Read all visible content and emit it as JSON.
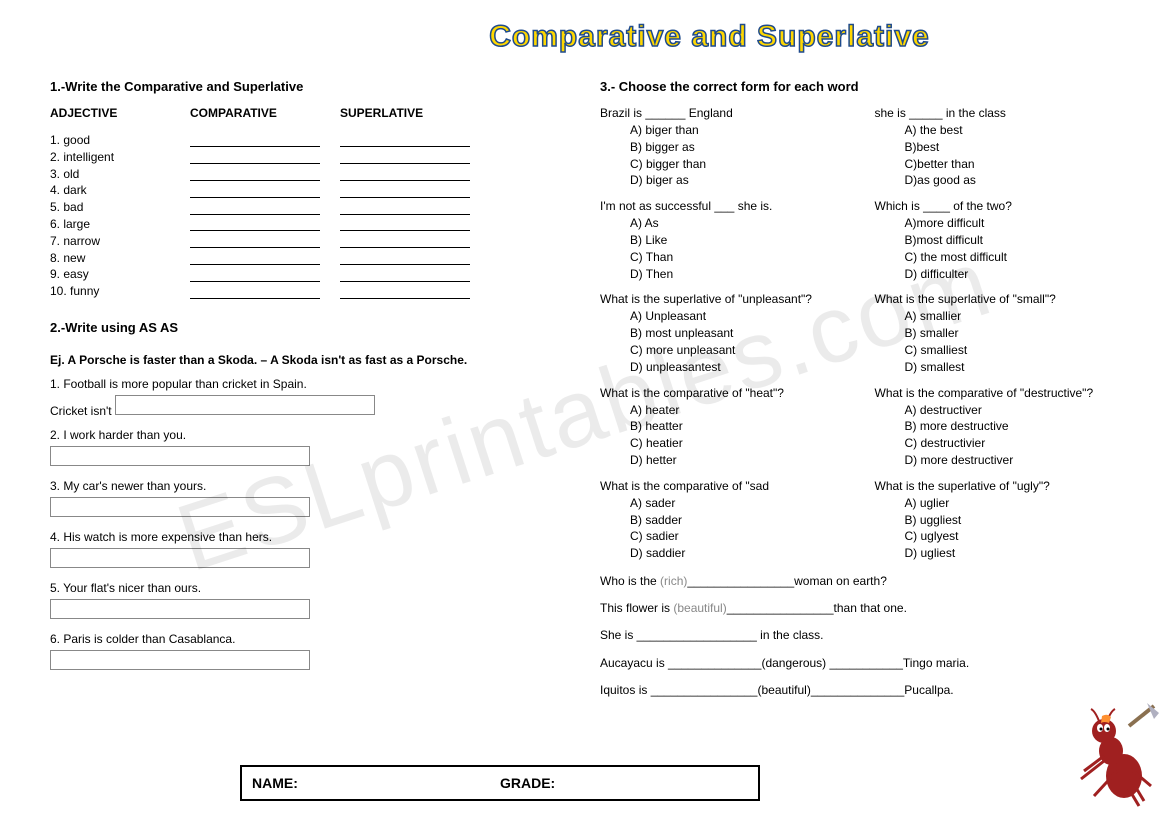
{
  "title": "Comparative and Superlative",
  "section1": {
    "title": "1.-Write the Comparative and Superlative",
    "headers": {
      "adj": "ADJECTIVE",
      "comp": "COMPARATIVE",
      "sup": "SUPERLATIVE"
    },
    "adjectives": [
      "1. good",
      "2. intelligent",
      "3. old",
      "4. dark",
      "5. bad",
      "6. large",
      "7. narrow",
      "8. new",
      "9. easy",
      "10. funny"
    ]
  },
  "section2": {
    "title": "2.-Write using AS   AS",
    "example": "Ej. A Porsche is faster than a Skoda. – A Skoda isn't as fast as a Porsche.",
    "items": [
      {
        "prompt": "1. Football is more popular than cricket in Spain.",
        "prefix": "Cricket isn't"
      },
      {
        "prompt": "2. I work harder than you.",
        "prefix": ""
      },
      {
        "prompt": "3. My car's newer than yours.",
        "prefix": ""
      },
      {
        "prompt": "4. His watch is more expensive than hers.",
        "prefix": ""
      },
      {
        "prompt": "5. Your flat's nicer than ours.",
        "prefix": ""
      },
      {
        "prompt": "6. Paris is colder than Casablanca.",
        "prefix": ""
      }
    ]
  },
  "section3": {
    "title": "3.- Choose the correct form for each word",
    "pairs": [
      {
        "left": {
          "prompt": "Brazil is ______ England",
          "opts": [
            "A)   biger than",
            "B)   bigger as",
            "C)   bigger than",
            "D)   biger as"
          ]
        },
        "right": {
          "prompt": "she is _____ in the class",
          "opts": [
            "A) the best",
            "B)best",
            "C)better than",
            "D)as good as"
          ]
        }
      },
      {
        "left": {
          "prompt": "I'm not as successful ___ she is.",
          "opts": [
            "A)   As",
            "B)   Like",
            "C)   Than",
            "D)   Then"
          ]
        },
        "right": {
          "prompt": "Which is ____ of the two?",
          "opts": [
            "A)more difficult",
            "B)most difficult",
            "C) the most difficult",
            "D) difficulter"
          ]
        }
      },
      {
        "left": {
          "prompt": "What is the superlative of \"unpleasant\"?",
          "opts": [
            "A)   Unpleasant",
            "B)   most unpleasant",
            "C)   more unpleasant",
            "D)   unpleasantest"
          ]
        },
        "right": {
          "prompt": "What is the superlative of \"small\"?",
          "opts": [
            "A) smallier",
            "B) smaller",
            "C) smalliest",
            "D) smallest"
          ]
        }
      },
      {
        "left": {
          "prompt": "What is the comparative of \"heat\"?",
          "opts": [
            "A)   heater",
            "B)   heatter",
            "C)   heatier",
            "D)   hetter"
          ]
        },
        "right": {
          "prompt": "What is the comparative of \"destructive\"?",
          "opts": [
            "A) destructiver",
            "B) more destructive",
            "C) destructivier",
            "D) more destructiver"
          ]
        }
      },
      {
        "left": {
          "prompt": "What is the comparative of \"sad",
          "opts": [
            "A)   sader",
            "B)   sadder",
            "C)   sadier",
            "D)   saddier"
          ]
        },
        "right": {
          "prompt": "What is the superlative of \"ugly\"?",
          "opts": [
            "A) uglier",
            "B) uggliest",
            "C) uglyest",
            "D) ugliest"
          ]
        }
      }
    ],
    "fills": [
      {
        "pre": "Who is the ",
        "hint": "(rich)",
        "post": "________________woman on earth?"
      },
      {
        "pre": "This flower is ",
        "hint": "(beautiful)",
        "post": "________________than that one."
      },
      {
        "pre": "She is __________________ in the class.",
        "hint": "",
        "post": ""
      },
      {
        "pre": "Aucayacu is ______________(dangerous) ___________Tingo maria.",
        "hint": "",
        "post": ""
      },
      {
        "pre": "Iquitos is ________________(beautiful)______________Pucallpa.",
        "hint": "",
        "post": ""
      }
    ]
  },
  "footer": {
    "name": "NAME:",
    "grade": "GRADE:"
  },
  "watermark": "ESLprintables.com"
}
